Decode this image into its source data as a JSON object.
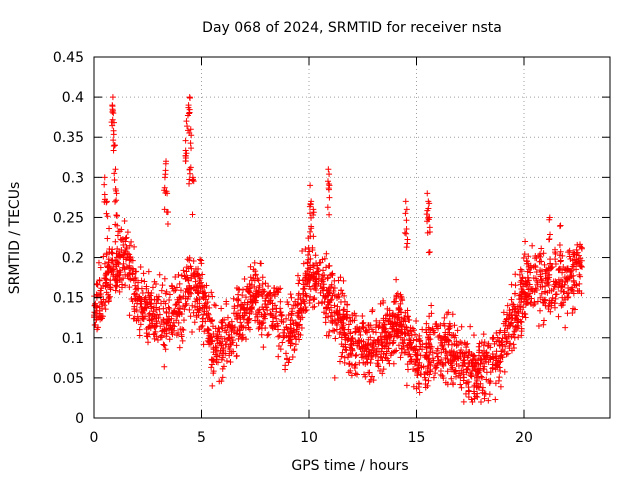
{
  "chart_data": {
    "type": "scatter",
    "title": "Day 068 of 2024, SRMTID for receiver nsta",
    "xlabel": "GPS time / hours",
    "ylabel": "SRMTID / TECUs",
    "xlim": [
      0,
      24
    ],
    "ylim": [
      0,
      0.45
    ],
    "xticks": [
      0,
      5,
      10,
      15,
      20
    ],
    "xtick_labels": [
      "0",
      "5",
      "10",
      "15",
      "20"
    ],
    "yticks": [
      0,
      0.05,
      0.1,
      0.15,
      0.2,
      0.25,
      0.3,
      0.35,
      0.4,
      0.45
    ],
    "ytick_labels": [
      "0",
      "0.05",
      "0.1",
      "0.15",
      "0.2",
      "0.25",
      "0.3",
      "0.35",
      "0.4",
      "0.45"
    ],
    "grid": true,
    "marker": "+",
    "color": "#ff0000",
    "series": [
      {
        "name": "SRMTID",
        "trend": {
          "x": [
            0,
            0.5,
            1,
            1.5,
            2,
            2.5,
            3,
            3.5,
            4,
            4.5,
            5,
            5.5,
            6,
            6.5,
            7,
            7.5,
            8,
            8.5,
            9,
            9.5,
            10,
            10.5,
            11,
            11.5,
            12,
            12.5,
            13,
            13.5,
            14,
            14.5,
            15,
            15.5,
            16,
            16.5,
            17,
            17.5,
            18,
            18.5,
            19,
            19.5,
            20,
            20.5,
            21,
            21.5,
            22,
            22.5
          ],
          "y": [
            0.13,
            0.17,
            0.19,
            0.2,
            0.15,
            0.14,
            0.13,
            0.12,
            0.14,
            0.17,
            0.15,
            0.1,
            0.09,
            0.11,
            0.13,
            0.15,
            0.14,
            0.13,
            0.1,
            0.13,
            0.18,
            0.17,
            0.14,
            0.12,
            0.1,
            0.09,
            0.09,
            0.1,
            0.12,
            0.11,
            0.07,
            0.08,
            0.09,
            0.08,
            0.07,
            0.06,
            0.06,
            0.07,
            0.09,
            0.12,
            0.16,
            0.17,
            0.16,
            0.17,
            0.16,
            0.19
          ]
        },
        "spread": 0.045,
        "points_per_hour": 110,
        "x_range": [
          0,
          22.7
        ],
        "spikes": [
          {
            "x": 0.5,
            "y": 0.3
          },
          {
            "x": 0.6,
            "y": 0.27
          },
          {
            "x": 0.85,
            "y": 0.39
          },
          {
            "x": 0.88,
            "y": 0.4
          },
          {
            "x": 0.9,
            "y": 0.38
          },
          {
            "x": 0.95,
            "y": 0.34
          },
          {
            "x": 1.0,
            "y": 0.31
          },
          {
            "x": 1.05,
            "y": 0.28
          },
          {
            "x": 3.3,
            "y": 0.3
          },
          {
            "x": 3.35,
            "y": 0.32
          },
          {
            "x": 3.4,
            "y": 0.28
          },
          {
            "x": 4.3,
            "y": 0.37
          },
          {
            "x": 4.4,
            "y": 0.39
          },
          {
            "x": 4.45,
            "y": 0.4
          },
          {
            "x": 4.5,
            "y": 0.36
          },
          {
            "x": 4.3,
            "y": 0.33
          },
          {
            "x": 4.45,
            "y": 0.31
          },
          {
            "x": 4.6,
            "y": 0.3
          },
          {
            "x": 10.05,
            "y": 0.29
          },
          {
            "x": 10.1,
            "y": 0.27
          },
          {
            "x": 10.2,
            "y": 0.26
          },
          {
            "x": 10.9,
            "y": 0.31
          },
          {
            "x": 10.95,
            "y": 0.29
          },
          {
            "x": 14.5,
            "y": 0.27
          },
          {
            "x": 14.55,
            "y": 0.26
          },
          {
            "x": 15.5,
            "y": 0.28
          },
          {
            "x": 15.55,
            "y": 0.27
          },
          {
            "x": 15.6,
            "y": 0.25
          },
          {
            "x": 21.2,
            "y": 0.25
          },
          {
            "x": 21.7,
            "y": 0.24
          }
        ],
        "lows": [
          {
            "x": 5.5,
            "y": 0.04
          },
          {
            "x": 11.2,
            "y": 0.05
          },
          {
            "x": 17.3,
            "y": 0.03
          },
          {
            "x": 17.6,
            "y": 0.02
          },
          {
            "x": 18.0,
            "y": 0.02
          }
        ]
      }
    ]
  }
}
